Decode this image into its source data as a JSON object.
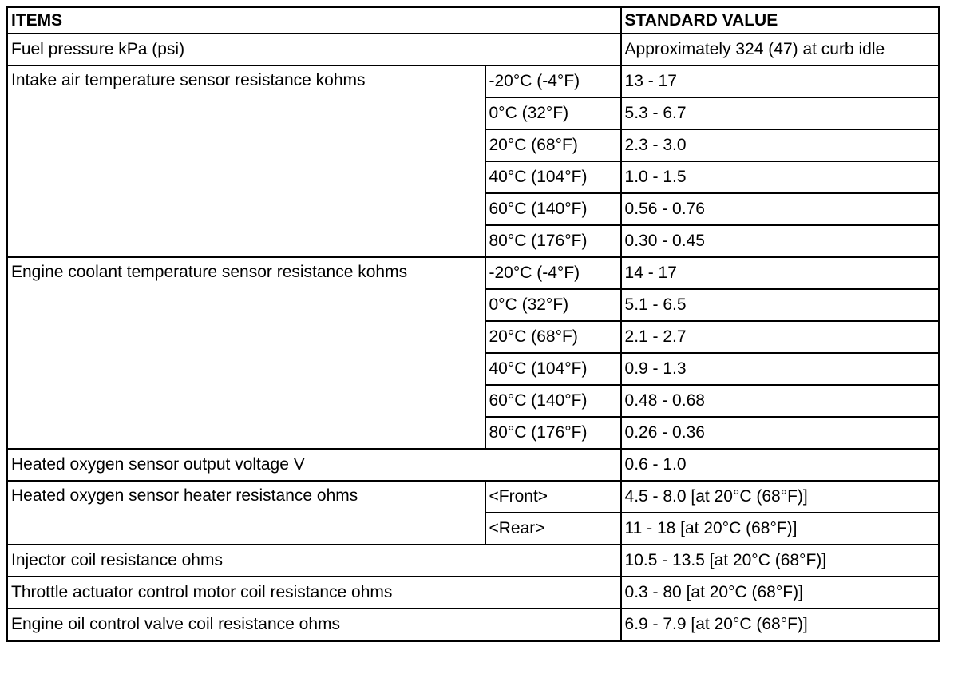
{
  "table": {
    "header": [
      "ITEMS",
      "STANDARD VALUE"
    ],
    "rows": [
      {
        "item": "Fuel pressure kPa (psi)",
        "value": "Approximately 324 (47) at curb idle"
      },
      {
        "item": "Intake air temperature sensor resistance kohms",
        "conditions": [
          {
            "condition": "-20°C (-4°F)",
            "value": "13 - 17"
          },
          {
            "condition": "0°C (32°F)",
            "value": "5.3 - 6.7"
          },
          {
            "condition": "20°C (68°F)",
            "value": "2.3 - 3.0"
          },
          {
            "condition": "40°C (104°F)",
            "value": "1.0 - 1.5"
          },
          {
            "condition": "60°C (140°F)",
            "value": "0.56 - 0.76"
          },
          {
            "condition": "80°C (176°F)",
            "value": "0.30 - 0.45"
          }
        ]
      },
      {
        "item": "Engine coolant temperature sensor resistance kohms",
        "conditions": [
          {
            "condition": "-20°C (-4°F)",
            "value": "14 - 17"
          },
          {
            "condition": "0°C (32°F)",
            "value": "5.1 - 6.5"
          },
          {
            "condition": "20°C (68°F)",
            "value": "2.1 - 2.7"
          },
          {
            "condition": "40°C (104°F)",
            "value": "0.9 - 1.3"
          },
          {
            "condition": "60°C (140°F)",
            "value": "0.48 - 0.68"
          },
          {
            "condition": "80°C (176°F)",
            "value": "0.26 - 0.36"
          }
        ]
      },
      {
        "item": "Heated oxygen sensor output voltage V",
        "value": "0.6 - 1.0"
      },
      {
        "item": "Heated oxygen sensor heater resistance ohms",
        "conditions": [
          {
            "condition": "<Front>",
            "value": "4.5 - 8.0 [at 20°C (68°F)]"
          },
          {
            "condition": "<Rear>",
            "value": "11 - 18 [at 20°C (68°F)]"
          }
        ]
      },
      {
        "item": "Injector coil resistance ohms",
        "value": "10.5 - 13.5 [at 20°C (68°F)]"
      },
      {
        "item": "Throttle actuator control motor coil resistance ohms",
        "value": "0.3 - 80 [at 20°C (68°F)]"
      },
      {
        "item": "Engine oil control valve coil resistance ohms",
        "value": "6.9 - 7.9 [at 20°C (68°F)]"
      }
    ]
  }
}
